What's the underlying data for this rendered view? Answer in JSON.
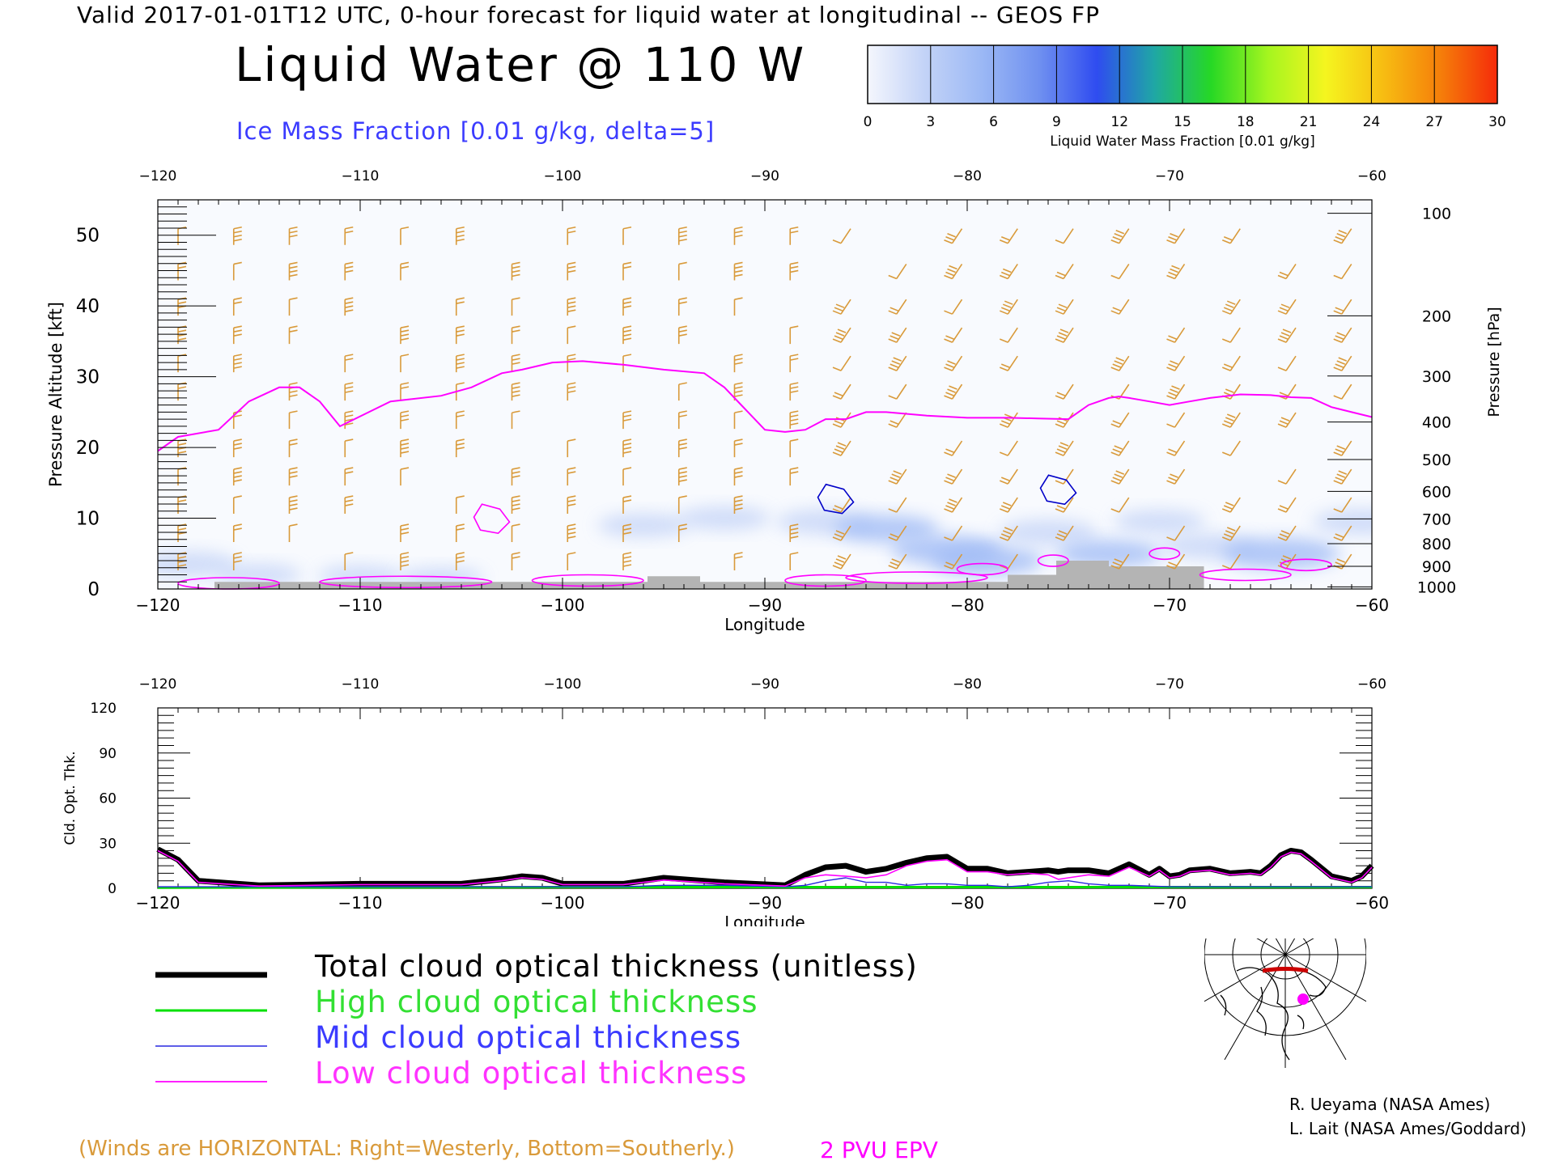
{
  "header": {
    "title": "Valid 2017-01-01T12 UTC, 0-hour forecast for liquid water at longitudinal -- GEOS FP",
    "main_title": "Liquid Water @ 110 W",
    "subtitle": "Ice Mass Fraction [0.01 g/kg, delta=5]"
  },
  "colorbar": {
    "label": "Liquid Water Mass Fraction [0.01 g/kg]",
    "ticks": [
      "0",
      "3",
      "6",
      "9",
      "12",
      "15",
      "18",
      "21",
      "24",
      "27",
      "30"
    ],
    "colors": [
      "#f4f6fd",
      "#c3d3f7",
      "#9bb8f5",
      "#6f90f0",
      "#2f4cf0",
      "#1fa7a5",
      "#26d825",
      "#a5f51f",
      "#f5f51f",
      "#f7bd12",
      "#f57f0a",
      "#f52b0a"
    ]
  },
  "chart_data": [
    {
      "type": "area",
      "xlabel": "Longitude",
      "ylabel": "Pressure Altitude [kft]",
      "y2label": "Pressure [hPa]",
      "xlim": [
        -120,
        -60
      ],
      "ylim": [
        0,
        55
      ],
      "x_ticks": [
        "−120",
        "−110",
        "−100",
        "−90",
        "−80",
        "−70",
        "−60"
      ],
      "x_tick_values": [
        -120,
        -110,
        -100,
        -90,
        -80,
        -70,
        -60
      ],
      "y_ticks": [
        "0",
        "10",
        "20",
        "30",
        "40",
        "50"
      ],
      "y_tick_values": [
        0,
        10,
        20,
        30,
        40,
        50
      ],
      "pressure_ticks": [
        "100",
        "200",
        "300",
        "400",
        "500",
        "600",
        "700",
        "800",
        "900",
        "1000"
      ],
      "pressure_tick_altitudes_kft": [
        53.1,
        38.6,
        30.1,
        23.6,
        18.3,
        13.8,
        9.9,
        6.4,
        3.2,
        0.3
      ],
      "series": [
        {
          "name": "2 PVU EPV",
          "color": "#ff00ff",
          "x": [
            -120,
            -119,
            -117,
            -115.5,
            -114,
            -113,
            -112,
            -111,
            -108.5,
            -106,
            -104.5,
            -103,
            -102,
            -100.5,
            -99,
            -97,
            -95,
            -93,
            -92,
            -91,
            -90,
            -89,
            -88,
            -87,
            -86,
            -85,
            -84,
            -82,
            -80,
            -78,
            -76.5,
            -75,
            -74,
            -73,
            -72.5,
            -72,
            -71,
            -70,
            -69,
            -68,
            -66.5,
            -65,
            -64,
            -63,
            -62,
            -61,
            -60
          ],
          "y": [
            19.5,
            21.5,
            22.5,
            26.5,
            28.5,
            28.5,
            26.5,
            23.0,
            26.5,
            27.3,
            28.5,
            30.5,
            31.0,
            32.0,
            32.2,
            31.7,
            31.0,
            30.5,
            28.5,
            25.5,
            22.5,
            22.2,
            22.5,
            24.0,
            24.0,
            25.0,
            25.0,
            24.5,
            24.2,
            24.2,
            24.1,
            24.0,
            26.0,
            27.0,
            27.2,
            27.0,
            26.5,
            26.0,
            26.5,
            27.0,
            27.5,
            27.4,
            27.1,
            27.0,
            25.7,
            25.0,
            24.3
          ]
        }
      ],
      "liquid_water_patches": [
        {
          "lon": -118.5,
          "alt_kft": 3.5,
          "value": 4
        },
        {
          "lon": -115,
          "alt_kft": 2.0,
          "value": 2
        },
        {
          "lon": -110,
          "alt_kft": 1.8,
          "value": 2
        },
        {
          "lon": -106,
          "alt_kft": 1.5,
          "value": 2
        },
        {
          "lon": -96,
          "alt_kft": 9.0,
          "value": 3
        },
        {
          "lon": -92,
          "alt_kft": 10.0,
          "value": 3
        },
        {
          "lon": -87,
          "alt_kft": 9.5,
          "value": 4
        },
        {
          "lon": -84,
          "alt_kft": 8.5,
          "value": 5
        },
        {
          "lon": -81,
          "alt_kft": 5.5,
          "value": 6
        },
        {
          "lon": -79,
          "alt_kft": 4.0,
          "value": 6
        },
        {
          "lon": -76,
          "alt_kft": 8.0,
          "value": 4
        },
        {
          "lon": -73,
          "alt_kft": 5.0,
          "value": 5
        },
        {
          "lon": -70.5,
          "alt_kft": 9.5,
          "value": 3
        },
        {
          "lon": -68,
          "alt_kft": 6.0,
          "value": 4
        },
        {
          "lon": -64.5,
          "alt_kft": 5.0,
          "value": 7
        },
        {
          "lon": -60.5,
          "alt_kft": 9.5,
          "value": 4
        }
      ],
      "ice_contours": [
        {
          "lon": -86.5,
          "alt_kft": 12.5,
          "color": "#0000c8"
        },
        {
          "lon": -75.5,
          "alt_kft": 13.8,
          "color": "#0000c8"
        },
        {
          "lon": -103.5,
          "alt_kft": 9.7,
          "color": "#ff00ff"
        }
      ],
      "terrain": [
        {
          "from": -117.2,
          "to": -95.8,
          "top_kft": 1.0
        },
        {
          "from": -95.8,
          "to": -93.2,
          "top_kft": 1.8
        },
        {
          "from": -93.2,
          "to": -78.0,
          "top_kft": 1.0
        },
        {
          "from": -78.0,
          "to": -75.6,
          "top_kft": 2.0
        },
        {
          "from": -75.6,
          "to": -73.0,
          "top_kft": 4.0
        },
        {
          "from": -73.0,
          "to": -68.3,
          "top_kft": 3.2
        }
      ]
    },
    {
      "type": "line",
      "xlabel": "Longitude",
      "ylabel": "Cld. Opt. Thk.",
      "xlim": [
        -120,
        -60
      ],
      "ylim": [
        0,
        120
      ],
      "x_ticks": [
        "−120",
        "−110",
        "−100",
        "−90",
        "−80",
        "−70",
        "−60"
      ],
      "x_tick_values": [
        -120,
        -110,
        -100,
        -90,
        -80,
        -70,
        -60
      ],
      "y_ticks": [
        "0",
        "30",
        "60",
        "90",
        "120"
      ],
      "y_tick_values": [
        0,
        30,
        60,
        90,
        120
      ],
      "series": [
        {
          "name": "Total cloud optical thickness (unitless)",
          "color": "#000000",
          "x": [
            -120,
            -119,
            -118,
            -115,
            -110,
            -105,
            -103,
            -102,
            -101,
            -100,
            -97,
            -96,
            -95,
            -92,
            -89,
            -88,
            -87,
            -86,
            -85,
            -84,
            -83,
            -82,
            -81,
            -80,
            -79,
            -78,
            -77,
            -76,
            -75.5,
            -75,
            -74,
            -73,
            -72,
            -71,
            -70.5,
            -70,
            -69.5,
            -69,
            -68,
            -67,
            -66,
            -65.5,
            -65,
            -64.5,
            -64,
            -63.5,
            -63,
            -62,
            -61,
            -60.5,
            -60
          ],
          "y": [
            26,
            19,
            5,
            2,
            3,
            3,
            6,
            8,
            7,
            3,
            3,
            5,
            7,
            4,
            2,
            9,
            14,
            15,
            11,
            13,
            17,
            20,
            21,
            13,
            13,
            10,
            11,
            12,
            11,
            12,
            12,
            10,
            16,
            9,
            13,
            8,
            9,
            12,
            13,
            10,
            11,
            10,
            15,
            22,
            25,
            24,
            19,
            8,
            5,
            8,
            15
          ]
        },
        {
          "name": "High cloud optical thickness",
          "color": "#00e000",
          "x": [
            -120,
            -100,
            -90,
            -80,
            -70,
            -60
          ],
          "y": [
            0.5,
            0.8,
            0.8,
            0.8,
            0.8,
            0.8
          ]
        },
        {
          "name": "Mid cloud optical thickness",
          "color": "#2828e0",
          "x": [
            -120,
            -105,
            -97,
            -95,
            -92,
            -89,
            -88,
            -87,
            -86,
            -85,
            -84,
            -83,
            -82,
            -81,
            -80,
            -79,
            -78,
            -77,
            -76,
            -75,
            -74,
            -73,
            -72,
            -70,
            -68,
            -66,
            -64,
            -62,
            -60
          ],
          "y": [
            1,
            1,
            1,
            2,
            2,
            1,
            2,
            5,
            7,
            4,
            4,
            2,
            3,
            3,
            2,
            2,
            1,
            2,
            4,
            5,
            3,
            2,
            2,
            1,
            1,
            1,
            1,
            1,
            1
          ]
        },
        {
          "name": "Low cloud optical thickness",
          "color": "#ff00ff",
          "x": [
            -120,
            -119,
            -118,
            -115,
            -110,
            -105,
            -103,
            -102,
            -101,
            -100,
            -97,
            -96,
            -95,
            -92,
            -89,
            -88,
            -87,
            -86,
            -85,
            -84,
            -83,
            -82,
            -81,
            -80,
            -79,
            -78,
            -77,
            -76,
            -75.5,
            -75,
            -74,
            -73,
            -72,
            -71,
            -70.5,
            -70,
            -69.5,
            -69,
            -68,
            -67,
            -66,
            -65.5,
            -65,
            -64.5,
            -64,
            -63.5,
            -63,
            -62,
            -61,
            -60.5,
            -60
          ],
          "y": [
            25,
            18,
            4,
            1.5,
            2.5,
            2.5,
            5,
            7,
            6,
            2.5,
            2.5,
            4,
            5.5,
            3,
            1.5,
            7,
            9,
            8,
            7,
            9,
            15,
            18,
            19,
            11,
            11,
            9,
            10,
            9,
            6,
            7,
            9,
            8,
            14,
            8,
            12,
            7,
            8,
            11,
            12,
            9,
            10,
            9,
            14,
            21,
            24,
            23,
            18,
            7,
            4,
            7,
            14
          ]
        }
      ]
    }
  ],
  "legend": [
    {
      "label": "Total cloud optical thickness (unitless)",
      "color": "#000000",
      "text_color": "#000000"
    },
    {
      "label": "High cloud optical thickness",
      "color": "#00e000",
      "text_color": "#33e033"
    },
    {
      "label": "Mid cloud optical thickness",
      "color": "#2828e0",
      "text_color": "#3b3bff"
    },
    {
      "label": "Low cloud optical thickness",
      "color": "#ff00ff",
      "text_color": "#ff33ff"
    }
  ],
  "winds_note": "(Winds are HORIZONTAL: Right=Westerly, Bottom=Southerly.)",
  "epv_note": "2 PVU EPV",
  "credits": [
    "R. Ueyama (NASA Ames)",
    "L. Lait (NASA Ames/Goddard)"
  ],
  "inset_map": {
    "marker_color": "#ff00ff",
    "section_color": "#cc0000"
  }
}
